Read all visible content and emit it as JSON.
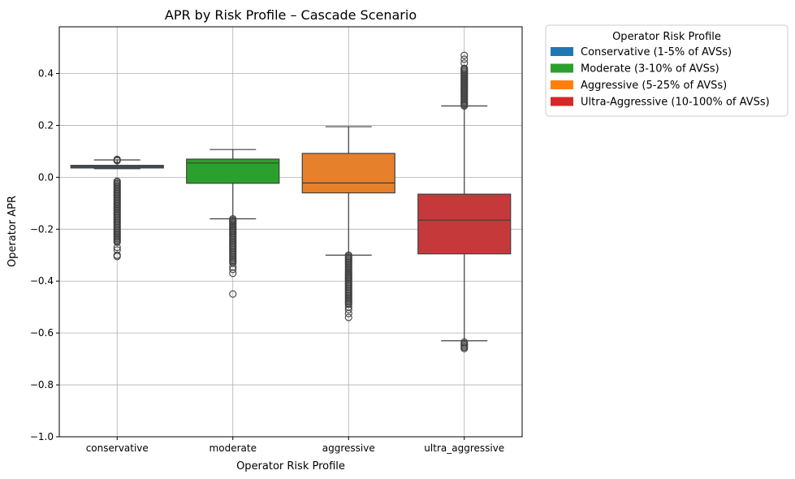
{
  "chart_data": {
    "type": "box",
    "title": "APR by Risk Profile – Cascade Scenario",
    "xlabel": "Operator Risk Profile",
    "ylabel": "Operator APR",
    "ylim": [
      -1.0,
      0.58
    ],
    "yticks": [
      -1.0,
      -0.8,
      -0.6,
      -0.4,
      -0.2,
      0.0,
      0.2,
      0.4
    ],
    "ytick_labels": [
      "−1.0",
      "−0.8",
      "−0.6",
      "−0.4",
      "−0.2",
      "0.0",
      "0.2",
      "0.4"
    ],
    "grid": true,
    "categories": [
      "conservative",
      "moderate",
      "aggressive",
      "ultra_aggressive"
    ],
    "boxes": [
      {
        "category": "conservative",
        "color": "#3a5f7d",
        "whisker_low": 0.033,
        "q1": 0.036,
        "median": 0.042,
        "q3": 0.046,
        "whisker_high": 0.067,
        "outliers_high": [
          0.064,
          0.067,
          0.069
        ],
        "outliers_low_range": [
          -0.25,
          -0.015
        ],
        "outliers_low_sparse": [
          -0.27,
          -0.28,
          -0.3,
          -0.305
        ]
      },
      {
        "category": "moderate",
        "color": "#2ca02c",
        "whisker_low": -0.16,
        "q1": -0.023,
        "median": 0.055,
        "q3": 0.07,
        "whisker_high": 0.107,
        "outliers_high": [],
        "outliers_low_range": [
          -0.33,
          -0.16
        ],
        "outliers_low_sparse": [
          -0.345,
          -0.355,
          -0.37,
          -0.45
        ]
      },
      {
        "category": "aggressive",
        "color": "#e6802a",
        "whisker_low": -0.3,
        "q1": -0.06,
        "median": -0.022,
        "q3": 0.092,
        "whisker_high": 0.195,
        "outliers_high": [],
        "outliers_low_range": [
          -0.49,
          -0.3
        ],
        "outliers_low_sparse": [
          -0.5,
          -0.51,
          -0.525,
          -0.54
        ]
      },
      {
        "category": "ultra_aggressive",
        "color": "#c6393b",
        "whisker_low": -0.63,
        "q1": -0.295,
        "median": -0.165,
        "q3": -0.065,
        "whisker_high": 0.275,
        "outliers_high_range": [
          0.275,
          0.42
        ],
        "outliers_high_sparse": [
          0.44,
          0.455,
          0.47
        ],
        "outliers_low_range": [
          -0.66,
          -0.635
        ],
        "outliers_low_sparse": []
      }
    ],
    "legend": {
      "title": "Operator Risk Profile",
      "placement": "outside-right",
      "entries": [
        {
          "label": "Conservative (1-5% of AVSs)",
          "color": "#1f77b4"
        },
        {
          "label": "Moderate (3-10% of AVSs)",
          "color": "#2ca02c"
        },
        {
          "label": "Aggressive (5-25% of AVSs)",
          "color": "#ff7f0e"
        },
        {
          "label": "Ultra-Aggressive (10-100% of AVSs)",
          "color": "#d62728"
        }
      ]
    }
  }
}
